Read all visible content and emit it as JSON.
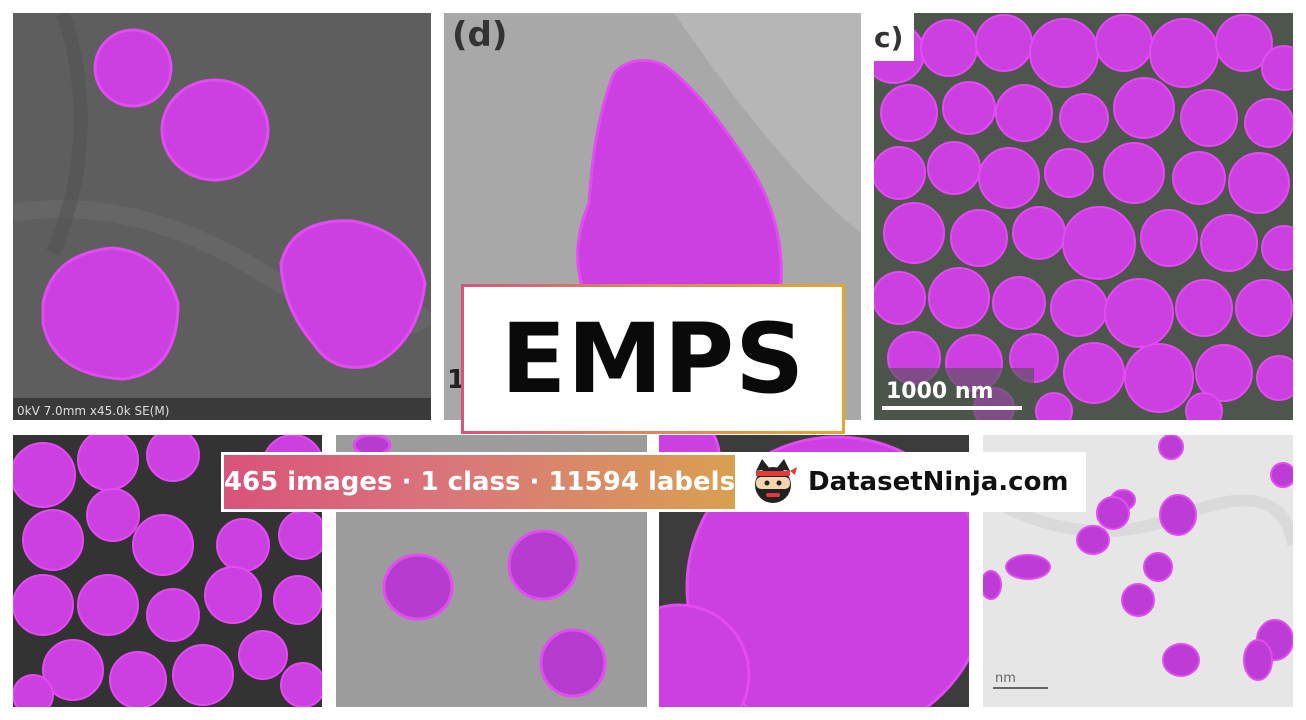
{
  "panels": {
    "tl": {
      "footer": "0kV 7.0mm x45.0k SE(M)"
    },
    "tm": {
      "label": "(d)",
      "cut_label": "1"
    },
    "tr": {
      "label": "c)",
      "scalebar": "1000 nm"
    },
    "br": {
      "scalebar": "nm"
    }
  },
  "title": "EMPS",
  "stats": "465 images · 1 class · 11594 labels",
  "brand": {
    "name": "DatasetNinja.com",
    "icon": "ninja-cat-icon"
  },
  "colors": {
    "mask": "#cc3fe0",
    "mask_edge": "#e34cf2",
    "gradient_start": "#d9537a",
    "gradient_end": "#d9a050"
  }
}
